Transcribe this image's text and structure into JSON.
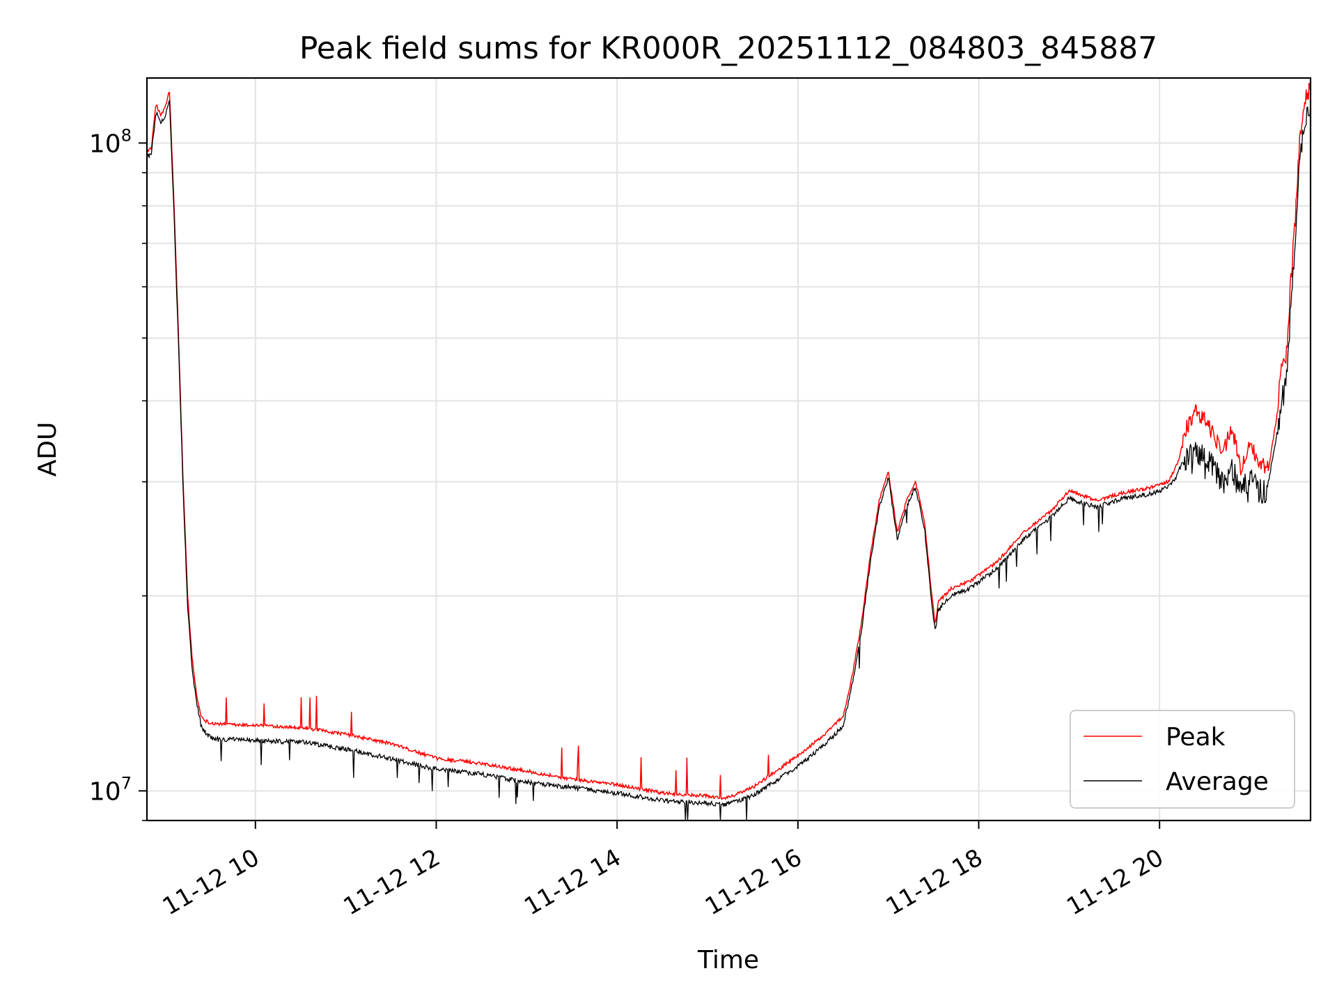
{
  "chart_data": {
    "type": "line",
    "title": "Peak field sums for KR000R_20251112_084803_845887",
    "xlabel": "Time",
    "ylabel": "ADU",
    "yscale": "log",
    "xlim_hours": [
      8.8,
      21.67
    ],
    "ylim": [
      9000000,
      126000000
    ],
    "grid": true,
    "legend_position": "lower-right",
    "x_ticks": [
      {
        "hour": 10,
        "label": "11-12 10"
      },
      {
        "hour": 12,
        "label": "11-12 12"
      },
      {
        "hour": 14,
        "label": "11-12 14"
      },
      {
        "hour": 16,
        "label": "11-12 16"
      },
      {
        "hour": 18,
        "label": "11-12 18"
      },
      {
        "hour": 20,
        "label": "11-12 20"
      }
    ],
    "y_ticks": [
      {
        "value": 10000000,
        "base": "10",
        "exp": "7"
      },
      {
        "value": 100000000,
        "base": "10",
        "exp": "8"
      }
    ],
    "x_units": "hours on 2025-11-12",
    "x": [
      8.8,
      8.85,
      8.9,
      8.95,
      9.0,
      9.05,
      9.1,
      9.15,
      9.2,
      9.25,
      9.3,
      9.35,
      9.4,
      9.45,
      9.5,
      9.6,
      9.8,
      10.0,
      10.5,
      11.0,
      11.5,
      12.0,
      12.5,
      13.0,
      13.5,
      14.0,
      14.5,
      14.7,
      15.0,
      15.2,
      15.5,
      16.0,
      16.3,
      16.5,
      16.6,
      16.7,
      16.8,
      16.9,
      17.0,
      17.1,
      17.2,
      17.3,
      17.4,
      17.48,
      17.52,
      17.55,
      17.7,
      17.9,
      18.2,
      18.5,
      18.8,
      19.0,
      19.3,
      19.6,
      19.9,
      20.1,
      20.2,
      20.3,
      20.4,
      20.5,
      20.6,
      20.7,
      20.8,
      20.9,
      21.0,
      21.1,
      21.2,
      21.3,
      21.35,
      21.4,
      21.45,
      21.5,
      21.55,
      21.6,
      21.67
    ],
    "series": [
      {
        "name": "Peak",
        "color": "#ff0000",
        "values": [
          97000000,
          98000000,
          115000000,
          110000000,
          113000000,
          120000000,
          80000000,
          50000000,
          30000000,
          20000000,
          16000000,
          14000000,
          13000000,
          12800000,
          12700000,
          12650000,
          12600000,
          12600000,
          12500000,
          12200000,
          11800000,
          11200000,
          11000000,
          10700000,
          10400000,
          10200000,
          9900000,
          9850000,
          9800000,
          9700000,
          10100000,
          11300000,
          12200000,
          13000000,
          15000000,
          18000000,
          23000000,
          28000000,
          31000000,
          25000000,
          28000000,
          30000000,
          26000000,
          20000000,
          18000000,
          19500000,
          20500000,
          21000000,
          22500000,
          25000000,
          27000000,
          29000000,
          28000000,
          28800000,
          29300000,
          30000000,
          32000000,
          36000000,
          38000000,
          37000000,
          35000000,
          33000000,
          36000000,
          31000000,
          34000000,
          32000000,
          31000000,
          38000000,
          45000000,
          46000000,
          60000000,
          75000000,
          100000000,
          115000000,
          120000000
        ]
      },
      {
        "name": "Average",
        "color": "#000000",
        "values": [
          96000000,
          97000000,
          113000000,
          108000000,
          111000000,
          118000000,
          78000000,
          49000000,
          29500000,
          19500000,
          15500000,
          13800000,
          12700000,
          12400000,
          12200000,
          12100000,
          12100000,
          12050000,
          12000000,
          11700000,
          11300000,
          10900000,
          10700000,
          10400000,
          10200000,
          10000000,
          9750000,
          9700000,
          9650000,
          9600000,
          9900000,
          11000000,
          11900000,
          12700000,
          14700000,
          17700000,
          22700000,
          27700000,
          30700000,
          24700000,
          27700000,
          29700000,
          25700000,
          19700000,
          17700000,
          19200000,
          20200000,
          20700000,
          22200000,
          24700000,
          26700000,
          28500000,
          27700000,
          28500000,
          29000000,
          29700000,
          31000000,
          34000000,
          35000000,
          34000000,
          33000000,
          31000000,
          33000000,
          30000000,
          32000000,
          30500000,
          30000000,
          36000000,
          42000000,
          44000000,
          58000000,
          73000000,
          98000000,
          112000000,
          118000000
        ]
      }
    ]
  }
}
